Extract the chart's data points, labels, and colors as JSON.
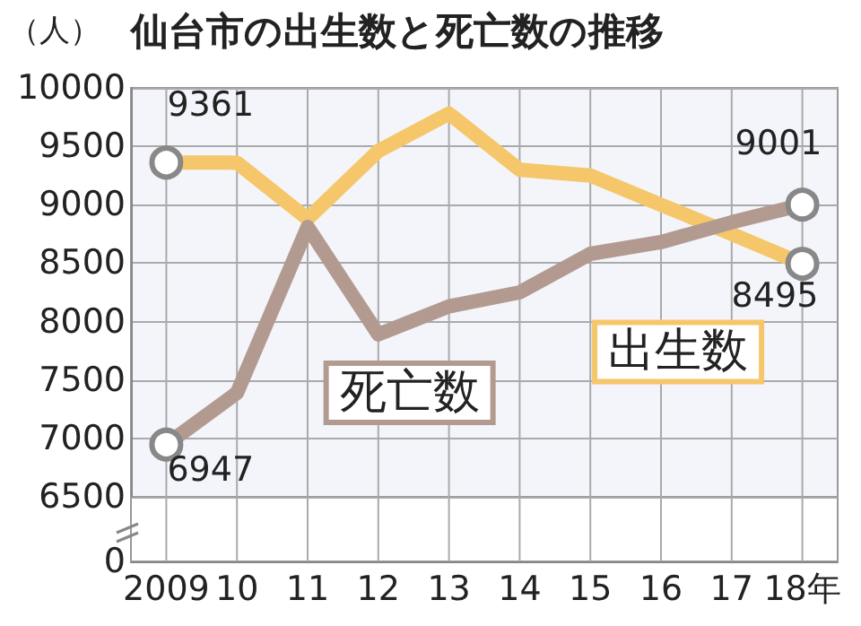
{
  "chart_data": {
    "type": "line",
    "title": "仙台市の出生数と死亡数の推移",
    "ylabel": "（人）",
    "categories": [
      "2009",
      "10",
      "11",
      "12",
      "13",
      "14",
      "15",
      "16",
      "17",
      "18年"
    ],
    "series": [
      {
        "name": "出生数",
        "color": "#f5c76a",
        "values": [
          9361,
          9360,
          8880,
          9460,
          9780,
          9300,
          9250,
          9000,
          8750,
          8495
        ],
        "value_labels": [
          "9361",
          null,
          null,
          null,
          null,
          null,
          null,
          null,
          null,
          "8495"
        ]
      },
      {
        "name": "死亡数",
        "color": "#b39a90",
        "values": [
          6947,
          7390,
          8810,
          7890,
          8130,
          8250,
          8580,
          8680,
          8850,
          9001
        ],
        "value_labels": [
          "6947",
          null,
          null,
          null,
          null,
          null,
          null,
          null,
          null,
          "9001"
        ]
      }
    ],
    "ylim": [
      6500,
      10000
    ],
    "yticks": [
      6500,
      7000,
      7500,
      8000,
      8500,
      9000,
      9500,
      10000
    ],
    "annotations": [
      "0"
    ],
    "grid": true,
    "line_style": "solid"
  }
}
